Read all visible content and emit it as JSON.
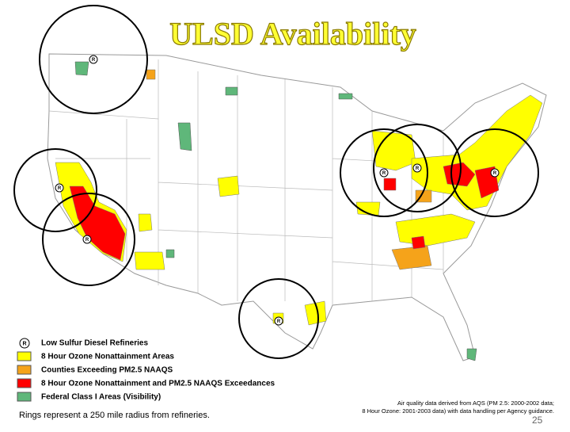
{
  "title": "ULSD Availability",
  "legend": {
    "items": [
      {
        "label": "Low Sulfur Diesel Refineries"
      },
      {
        "label": "8 Hour Ozone Nonattainment Areas"
      },
      {
        "label": "Counties Exceeding PM2.5 NAAQS"
      },
      {
        "label": "8 Hour Ozone Nonattainment and PM2.5 NAAQS Exceedances"
      },
      {
        "label": "Federal Class I Areas (Visibility)"
      }
    ]
  },
  "notes": {
    "rings": "Rings represent a 250 mile radius from refineries.",
    "source": [
      "Air quality data derived from AQS (PM 2.5: 2000-2002 data;",
      "8 Hour Ozone: 2001-2003 data) with data handling per Agency guidance."
    ]
  },
  "page_number": "25"
}
